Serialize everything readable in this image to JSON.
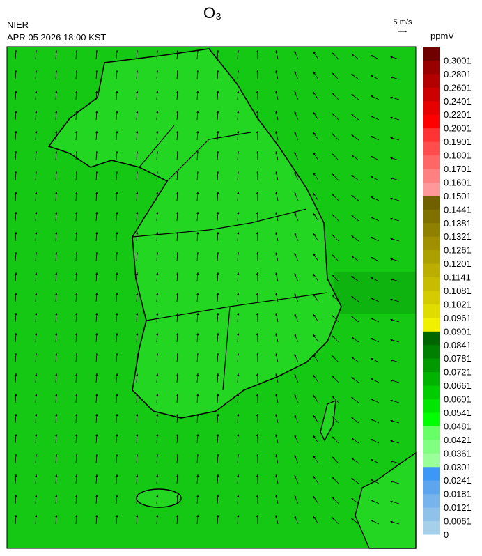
{
  "header": {
    "agency": "NIER",
    "datetime": "APR 05 2026 18:00 KST",
    "title": "O₃"
  },
  "wind_reference": {
    "label": "5 m/s"
  },
  "legend": {
    "unit": "ppmV",
    "labels": [
      "0",
      "0.0061",
      "0.0121",
      "0.0181",
      "0.0241",
      "0.0301",
      "0.0361",
      "0.0421",
      "0.0481",
      "0.0541",
      "0.0601",
      "0.0661",
      "0.0721",
      "0.0781",
      "0.0841",
      "0.0901",
      "0.0961",
      "0.1021",
      "0.1081",
      "0.1141",
      "0.1201",
      "0.1261",
      "0.1321",
      "0.1381",
      "0.1441",
      "0.1501",
      "0.1601",
      "0.1701",
      "0.1801",
      "0.1901",
      "0.2001",
      "0.2201",
      "0.2401",
      "0.2601",
      "0.2801",
      "0.3001"
    ],
    "colors": [
      "#a6cfe9",
      "#8fc1ea",
      "#77b3ec",
      "#5ea5ef",
      "#3d97f7",
      "#99ff99",
      "#80ff80",
      "#66ff66",
      "#00ff00",
      "#00e600",
      "#00cc00",
      "#00b300",
      "#009900",
      "#008000",
      "#006600",
      "#f0f000",
      "#e0dc00",
      "#d4cc00",
      "#c8bc00",
      "#bcae00",
      "#aca000",
      "#a09000",
      "#908000",
      "#807000",
      "#706000",
      "#ff9999",
      "#ff8080",
      "#ff6666",
      "#ff4d4d",
      "#ff3333",
      "#ff0000",
      "#e60000",
      "#cc0000",
      "#b30000",
      "#990000",
      "#700000"
    ]
  }
}
